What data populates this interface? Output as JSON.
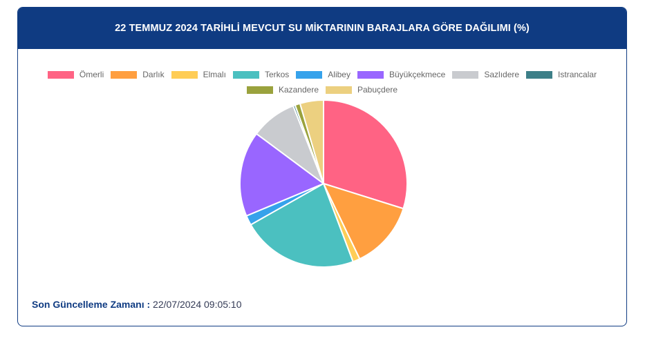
{
  "header": {
    "title": "22 TEMMUZ 2024 TARİHLİ MEVCUT SU MİKTARININ BARAJLARA GÖRE DAĞILIMI (%)"
  },
  "chart_data": {
    "type": "pie",
    "title": "22 TEMMUZ 2024 TARİHLİ MEVCUT SU MİKTARININ BARAJLARA GÖRE DAĞILIMI (%)",
    "categories": [
      "Ömerli",
      "Darlık",
      "Elmalı",
      "Terkos",
      "Alibey",
      "Büyükçekmece",
      "Sazlıdere",
      "Istrancalar",
      "Kazandere",
      "Pabuçdere"
    ],
    "values": [
      30.2,
      13.2,
      1.4,
      22.8,
      1.9,
      16.7,
      9.0,
      0.4,
      1.0,
      4.6
    ],
    "colors": [
      "#ff6384",
      "#ff9f40",
      "#ffcd56",
      "#4bc0c0",
      "#36a2eb",
      "#9966ff",
      "#c9cbcf",
      "#3d7f88",
      "#9aa23d",
      "#ecd080"
    ],
    "legend_position": "top"
  },
  "footer": {
    "label": "Son Güncelleme Zamanı :",
    "value": "22/07/2024 09:05:10"
  }
}
